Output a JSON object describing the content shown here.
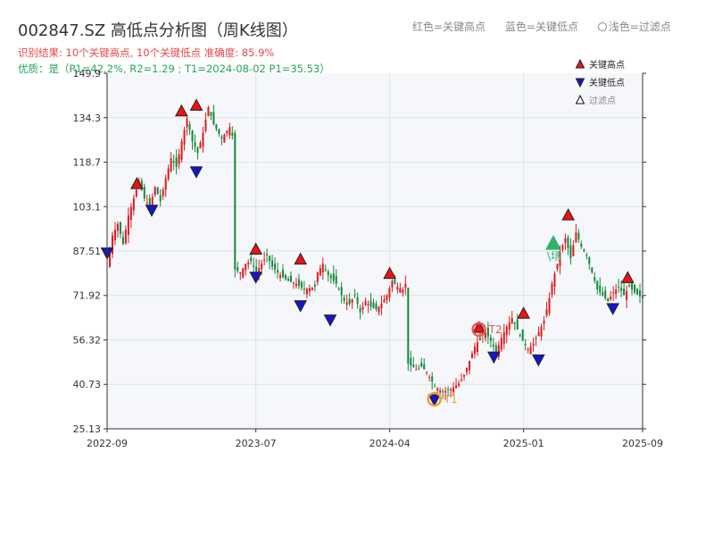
{
  "header": {
    "title": "002847.SZ 高低点分析图（周K线图）",
    "result_line": "识别结果: 10个关键高点, 10个关键低点   准确度: 85.9%",
    "quality_line": "优质：是（P1=42.2%, R2=1.29 ; T1=2024-08-02 P1=35.53）"
  },
  "top_legend": {
    "red": "红色=关键高点",
    "blue": "蓝色=关键低点",
    "light": "浅色=过滤点"
  },
  "colors": {
    "up": "#e0191b",
    "down": "#12893a",
    "high_marker": "#ee1111",
    "low_marker": "#1515cc",
    "filtered_marker": "#2db36b",
    "t1_circle": "#f2a020",
    "t2_circle": "#f05555",
    "grid": "#dde3ea",
    "plot_bg": "#f5f7fa"
  },
  "chart_data": {
    "type": "candlestick",
    "x_tick_labels": [
      "2022-09",
      "2023-07",
      "2024-04",
      "2025-01",
      "2025-09"
    ],
    "y_tick_labels": [
      "25.13",
      "40.73",
      "56.32",
      "71.92",
      "87.51",
      "103.1",
      "118.7",
      "134.3",
      "149.9"
    ],
    "ylim": [
      25.13,
      149.9
    ],
    "grid": true,
    "legend_position": "top-right",
    "legend": [
      {
        "label": "关键高点",
        "symbol": "triangle-up",
        "color": "#ee1111"
      },
      {
        "label": "关键低点",
        "symbol": "triangle-down",
        "color": "#1515cc"
      },
      {
        "label": "过滤点",
        "symbol": "triangle-up-outline",
        "color": "#111111"
      }
    ],
    "close_series": [
      [
        0,
        82
      ],
      [
        2,
        93
      ],
      [
        4,
        97
      ],
      [
        6,
        90
      ],
      [
        7,
        95
      ],
      [
        8,
        100
      ],
      [
        10,
        106
      ],
      [
        12,
        112
      ],
      [
        14,
        106
      ],
      [
        16,
        103
      ],
      [
        18,
        110
      ],
      [
        20,
        105
      ],
      [
        22,
        113
      ],
      [
        24,
        120
      ],
      [
        26,
        117
      ],
      [
        28,
        126
      ],
      [
        30,
        134
      ],
      [
        32,
        126
      ],
      [
        34,
        122
      ],
      [
        36,
        129
      ],
      [
        38,
        138
      ],
      [
        40,
        132
      ],
      [
        43,
        127
      ],
      [
        46,
        131
      ],
      [
        47,
        128
      ],
      [
        48,
        81
      ],
      [
        50,
        80
      ],
      [
        52,
        83
      ],
      [
        54,
        84
      ],
      [
        56,
        80
      ],
      [
        58,
        83
      ],
      [
        60,
        86
      ],
      [
        62,
        82
      ],
      [
        65,
        79
      ],
      [
        68,
        77
      ],
      [
        71,
        76
      ],
      [
        74,
        74
      ],
      [
        78,
        75
      ],
      [
        79,
        80
      ],
      [
        81,
        83
      ],
      [
        83,
        79
      ],
      [
        86,
        76
      ],
      [
        89,
        70
      ],
      [
        91,
        69
      ],
      [
        93,
        72
      ],
      [
        95,
        66
      ],
      [
        97,
        70
      ],
      [
        99,
        68
      ],
      [
        101,
        67
      ],
      [
        103,
        69
      ],
      [
        105,
        72
      ],
      [
        107,
        77
      ],
      [
        109,
        75
      ],
      [
        111,
        74
      ],
      [
        112,
        76
      ],
      [
        113,
        48
      ],
      [
        116,
        46
      ],
      [
        118,
        47
      ],
      [
        120,
        45
      ],
      [
        123,
        40
      ],
      [
        126,
        38
      ],
      [
        129,
        39
      ],
      [
        132,
        41
      ],
      [
        134,
        44
      ],
      [
        136,
        49
      ],
      [
        138,
        54
      ],
      [
        140,
        57
      ],
      [
        142,
        59
      ],
      [
        144,
        56
      ],
      [
        146,
        52
      ],
      [
        148,
        57
      ],
      [
        150,
        61
      ],
      [
        152,
        64
      ],
      [
        154,
        60
      ],
      [
        156,
        56
      ],
      [
        158,
        53
      ],
      [
        160,
        55
      ],
      [
        162,
        59
      ],
      [
        164,
        63
      ],
      [
        166,
        71
      ],
      [
        167,
        76
      ],
      [
        169,
        83
      ],
      [
        170,
        87
      ],
      [
        172,
        92
      ],
      [
        174,
        85
      ],
      [
        176,
        94
      ],
      [
        178,
        89
      ],
      [
        180,
        86
      ],
      [
        182,
        80
      ],
      [
        184,
        74
      ],
      [
        186,
        72
      ],
      [
        188,
        70
      ],
      [
        190,
        73
      ],
      [
        192,
        75
      ],
      [
        194,
        72
      ],
      [
        196,
        75
      ],
      [
        198,
        73
      ],
      [
        201,
        71
      ]
    ],
    "key_highs": [
      {
        "date": "2022-11",
        "value": 111.0
      },
      {
        "date": "2023-02",
        "value": 136.5
      },
      {
        "date": "2023-03",
        "value": 138.5
      },
      {
        "date": "2023-07",
        "value": 88.0
      },
      {
        "date": "2023-10",
        "value": 84.5
      },
      {
        "date": "2024-04",
        "value": 79.5
      },
      {
        "date": "2024-10",
        "value": 60.5
      },
      {
        "date": "2025-01",
        "value": 65.5
      },
      {
        "date": "2025-04",
        "value": 100.0
      },
      {
        "date": "2025-08",
        "value": 78.0
      }
    ],
    "key_lows": [
      {
        "date": "2022-09",
        "value": 87.0
      },
      {
        "date": "2022-12",
        "value": 102.0
      },
      {
        "date": "2023-03",
        "value": 115.5
      },
      {
        "date": "2023-07",
        "value": 78.5
      },
      {
        "date": "2023-10",
        "value": 68.5
      },
      {
        "date": "2023-12",
        "value": 63.5
      },
      {
        "date": "2024-07",
        "value": 35.5
      },
      {
        "date": "2024-11",
        "value": 50.5
      },
      {
        "date": "2025-02",
        "value": 49.5
      },
      {
        "date": "2025-07",
        "value": 67.5
      }
    ],
    "filtered_points": [
      {
        "date": "2025-03",
        "value": 90.0,
        "label": "\\场"
      }
    ],
    "annotations": [
      {
        "label": "T1",
        "date": "2024-07",
        "value": 35.53
      },
      {
        "label": "T2",
        "date": "2024-10",
        "value": 60.0
      }
    ]
  }
}
